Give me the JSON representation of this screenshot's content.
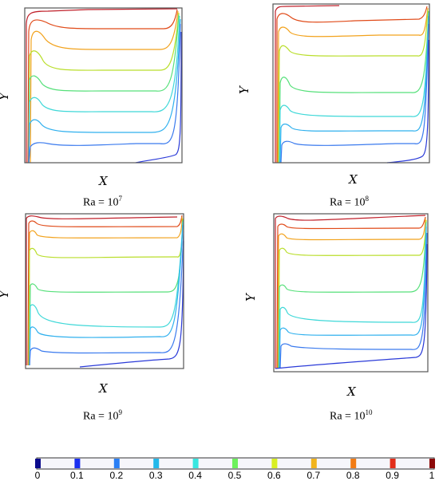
{
  "axes": {
    "x_label": "X",
    "y_label": "Y"
  },
  "panels": [
    {
      "ra_base": "Ra = 10",
      "ra_exp": "7"
    },
    {
      "ra_base": "Ra = 10",
      "ra_exp": "8"
    },
    {
      "ra_base": "Ra = 10",
      "ra_exp": "9"
    },
    {
      "ra_base": "Ra = 10",
      "ra_exp": "10"
    }
  ],
  "colorbar": {
    "ticks": [
      "0",
      "0.1",
      "0.2",
      "0.3",
      "0.4",
      "0.5",
      "0.6",
      "0.7",
      "0.8",
      "0.9",
      "1"
    ],
    "colors": [
      "#0b0b8c",
      "#1a2ff0",
      "#2a7ff5",
      "#22b8ea",
      "#38e6e0",
      "#6df25c",
      "#d9ef24",
      "#f2b41c",
      "#f27b14",
      "#e22d1a",
      "#8c0a0a"
    ]
  }
}
